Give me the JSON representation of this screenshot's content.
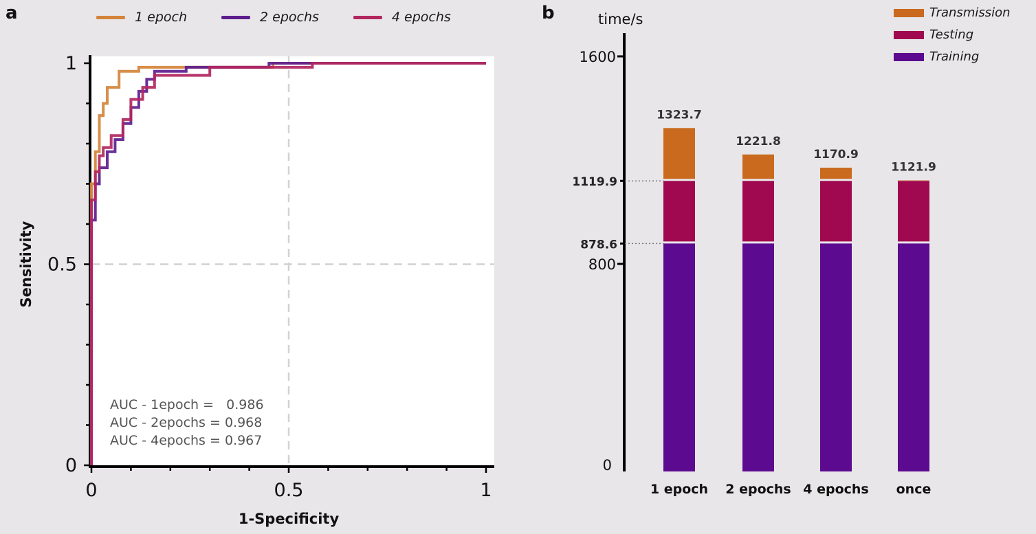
{
  "panel_a": {
    "label": "a",
    "legend": [
      {
        "label": "1 epoch",
        "color": "#d4843a"
      },
      {
        "label": "2 epochs",
        "color": "#5e1d8f"
      },
      {
        "label": "4 epochs",
        "color": "#b2275f"
      }
    ],
    "auc": [
      "AUC - 1epoch =   0.986",
      "AUC - 2epochs = 0.968",
      "AUC - 4epochs = 0.967"
    ]
  },
  "panel_b": {
    "label": "b",
    "legend": [
      {
        "label": "Transmission",
        "color": "#c96a1e"
      },
      {
        "label": "Testing",
        "color": "#a0094f"
      },
      {
        "label": "Training",
        "color": "#5c0a8f"
      }
    ]
  },
  "chart_data": [
    {
      "type": "line",
      "xlabel": "1-Specificity",
      "ylabel": "Sensitivity",
      "xlim": [
        0,
        1
      ],
      "ylim": [
        0,
        1
      ],
      "xticks": [
        "0",
        "0.5",
        "1"
      ],
      "yticks": [
        "0",
        "0.5",
        "1"
      ],
      "grid": "dashed reference lines at 0.5",
      "series": [
        {
          "name": "1 epoch",
          "color": "#d4843a",
          "x": [
            0,
            0,
            0.01,
            0.01,
            0.02,
            0.02,
            0.03,
            0.03,
            0.04,
            0.04,
            0.07,
            0.07,
            0.12,
            0.12,
            0.46,
            0.46,
            1.0
          ],
          "y": [
            0,
            0.7,
            0.7,
            0.78,
            0.78,
            0.87,
            0.87,
            0.9,
            0.9,
            0.94,
            0.94,
            0.98,
            0.98,
            0.99,
            0.99,
            1.0,
            1.0
          ]
        },
        {
          "name": "2 epochs",
          "color": "#5e1d8f",
          "x": [
            0,
            0,
            0.01,
            0.01,
            0.02,
            0.02,
            0.04,
            0.04,
            0.06,
            0.06,
            0.08,
            0.08,
            0.1,
            0.1,
            0.12,
            0.12,
            0.14,
            0.14,
            0.16,
            0.16,
            0.24,
            0.24,
            0.45,
            0.45,
            1.0
          ],
          "y": [
            0,
            0.61,
            0.61,
            0.7,
            0.7,
            0.74,
            0.74,
            0.78,
            0.78,
            0.81,
            0.81,
            0.85,
            0.85,
            0.89,
            0.89,
            0.93,
            0.93,
            0.96,
            0.96,
            0.98,
            0.98,
            0.99,
            0.99,
            1.0,
            1.0
          ]
        },
        {
          "name": "4 epochs",
          "color": "#b2275f",
          "x": [
            0,
            0,
            0.01,
            0.01,
            0.02,
            0.02,
            0.03,
            0.03,
            0.05,
            0.05,
            0.08,
            0.08,
            0.1,
            0.1,
            0.13,
            0.13,
            0.16,
            0.16,
            0.3,
            0.3,
            0.56,
            0.56,
            1.0
          ],
          "y": [
            0,
            0.66,
            0.66,
            0.73,
            0.73,
            0.77,
            0.77,
            0.79,
            0.79,
            0.82,
            0.82,
            0.86,
            0.86,
            0.91,
            0.91,
            0.94,
            0.94,
            0.97,
            0.97,
            0.99,
            0.99,
            1.0,
            1.0
          ]
        }
      ]
    },
    {
      "type": "bar",
      "stacked": true,
      "ylabel": "time/s",
      "ylim": [
        0,
        1600
      ],
      "yticks": [
        "0",
        "800",
        "1600"
      ],
      "reference_lines": [
        "1119.9",
        "878.6"
      ],
      "categories": [
        "1 epoch",
        "2 epochs",
        "4 epochs",
        "once"
      ],
      "totals": [
        "1323.7",
        "1221.8",
        "1170.9",
        "1121.9"
      ],
      "series": [
        {
          "name": "Training",
          "color": "#5c0a8f",
          "values": [
            878.6,
            878.6,
            878.6,
            878.6
          ]
        },
        {
          "name": "Testing",
          "color": "#a0094f",
          "values": [
            241.3,
            241.3,
            241.3,
            241.3
          ]
        },
        {
          "name": "Transmission",
          "color": "#c96a1e",
          "values": [
            203.8,
            101.9,
            51.0,
            2.0
          ]
        }
      ]
    }
  ]
}
